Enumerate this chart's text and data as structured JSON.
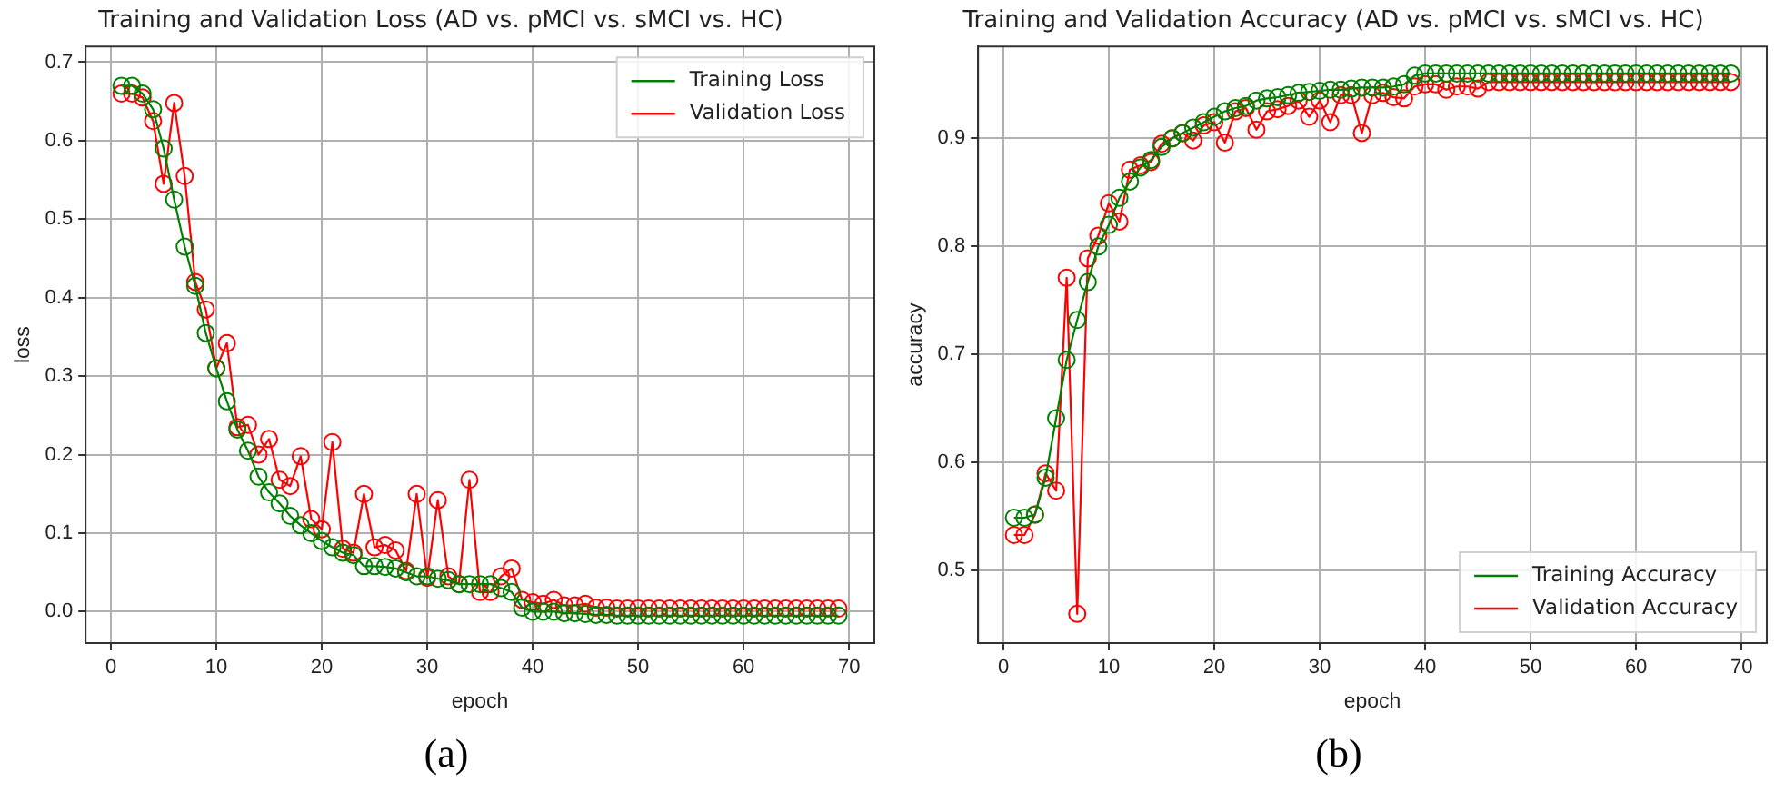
{
  "chart_data": [
    {
      "type": "line",
      "title": "Training and Validation Loss (AD vs. pMCI vs. sMCI vs. HC)",
      "xlabel": "epoch",
      "ylabel": "loss",
      "annotations": [
        "(a)"
      ],
      "x": [
        1,
        2,
        3,
        4,
        5,
        6,
        7,
        8,
        9,
        10,
        11,
        12,
        13,
        14,
        15,
        16,
        17,
        18,
        19,
        20,
        21,
        22,
        23,
        24,
        25,
        26,
        27,
        28,
        29,
        30,
        31,
        32,
        33,
        34,
        35,
        36,
        37,
        38,
        39,
        40,
        41,
        42,
        43,
        44,
        45,
        46,
        47,
        48,
        49,
        50,
        51,
        52,
        53,
        54,
        55,
        56,
        57,
        58,
        59,
        60,
        61,
        62,
        63,
        64,
        65,
        66,
        67,
        68,
        69
      ],
      "series": [
        {
          "name": "Training Loss",
          "color": "#008000",
          "values": [
            0.67,
            0.67,
            0.66,
            0.64,
            0.59,
            0.525,
            0.465,
            0.415,
            0.355,
            0.31,
            0.268,
            0.232,
            0.205,
            0.172,
            0.152,
            0.138,
            0.122,
            0.11,
            0.1,
            0.09,
            0.082,
            0.075,
            0.072,
            0.058,
            0.058,
            0.057,
            0.055,
            0.05,
            0.045,
            0.045,
            0.042,
            0.04,
            0.035,
            0.035,
            0.035,
            0.035,
            0.03,
            0.025,
            0.005,
            0.0,
            0.0,
            0.0,
            -0.002,
            -0.002,
            -0.003,
            -0.004,
            -0.004,
            -0.005,
            -0.005,
            -0.005,
            -0.005,
            -0.005,
            -0.005,
            -0.005,
            -0.005,
            -0.005,
            -0.005,
            -0.005,
            -0.005,
            -0.005,
            -0.005,
            -0.005,
            -0.005,
            -0.005,
            -0.005,
            -0.005,
            -0.005,
            -0.005,
            -0.005
          ]
        },
        {
          "name": "Validation Loss",
          "color": "#ff0000",
          "values": [
            0.66,
            0.66,
            0.655,
            0.625,
            0.545,
            0.648,
            0.555,
            0.42,
            0.385,
            0.31,
            0.342,
            0.235,
            0.238,
            0.2,
            0.22,
            0.168,
            0.16,
            0.198,
            0.118,
            0.105,
            0.216,
            0.08,
            0.075,
            0.15,
            0.082,
            0.085,
            0.078,
            0.052,
            0.15,
            0.043,
            0.142,
            0.045,
            0.035,
            0.168,
            0.025,
            0.025,
            0.045,
            0.055,
            0.015,
            0.012,
            0.01,
            0.015,
            0.008,
            0.008,
            0.01,
            0.005,
            0.005,
            0.004,
            0.004,
            0.004,
            0.004,
            0.004,
            0.004,
            0.004,
            0.004,
            0.004,
            0.004,
            0.004,
            0.004,
            0.004,
            0.004,
            0.004,
            0.004,
            0.004,
            0.004,
            0.004,
            0.004,
            0.004,
            0.004
          ]
        }
      ],
      "xlim": [
        -2.4,
        72.4
      ],
      "xticks": [
        0,
        10,
        20,
        30,
        40,
        50,
        60,
        70
      ],
      "ylim": [
        -0.04,
        0.72
      ],
      "yticks": [
        {
          "value": 0,
          "label": "0.0"
        },
        0.1,
        0.2,
        0.3,
        0.4,
        0.5,
        0.6,
        0.7
      ],
      "grid": true,
      "legend": "top right",
      "marker": "circle",
      "line_style": "solid"
    },
    {
      "type": "line",
      "title": "Training and Validation Accuracy (AD vs. pMCI vs. sMCI vs. HC)",
      "xlabel": "epoch",
      "ylabel": "accuracy",
      "annotations": [
        "(b)"
      ],
      "x": [
        1,
        2,
        3,
        4,
        5,
        6,
        7,
        8,
        9,
        10,
        11,
        12,
        13,
        14,
        15,
        16,
        17,
        18,
        19,
        20,
        21,
        22,
        23,
        24,
        25,
        26,
        27,
        28,
        29,
        30,
        31,
        32,
        33,
        34,
        35,
        36,
        37,
        38,
        39,
        40,
        41,
        42,
        43,
        44,
        45,
        46,
        47,
        48,
        49,
        50,
        51,
        52,
        53,
        54,
        55,
        56,
        57,
        58,
        59,
        60,
        61,
        62,
        63,
        64,
        65,
        66,
        67,
        68,
        69
      ],
      "series": [
        {
          "name": "Training Accuracy",
          "color": "#008000",
          "values": [
            0.549,
            0.549,
            0.552,
            0.586,
            0.641,
            0.695,
            0.732,
            0.767,
            0.8,
            0.82,
            0.845,
            0.86,
            0.873,
            0.88,
            0.892,
            0.9,
            0.905,
            0.91,
            0.915,
            0.92,
            0.925,
            0.928,
            0.93,
            0.935,
            0.937,
            0.938,
            0.94,
            0.942,
            0.943,
            0.944,
            0.945,
            0.945,
            0.946,
            0.947,
            0.947,
            0.947,
            0.948,
            0.95,
            0.958,
            0.96,
            0.96,
            0.96,
            0.96,
            0.96,
            0.96,
            0.96,
            0.96,
            0.96,
            0.96,
            0.96,
            0.96,
            0.96,
            0.96,
            0.96,
            0.96,
            0.96,
            0.96,
            0.96,
            0.96,
            0.96,
            0.96,
            0.96,
            0.96,
            0.96,
            0.96,
            0.96,
            0.96,
            0.96,
            0.96
          ]
        },
        {
          "name": "Validation Accuracy",
          "color": "#ff0000",
          "values": [
            0.533,
            0.533,
            0.552,
            0.59,
            0.574,
            0.771,
            0.46,
            0.789,
            0.81,
            0.84,
            0.823,
            0.871,
            0.875,
            0.878,
            0.895,
            0.9,
            0.905,
            0.898,
            0.912,
            0.915,
            0.896,
            0.925,
            0.928,
            0.908,
            0.925,
            0.927,
            0.93,
            0.935,
            0.92,
            0.935,
            0.915,
            0.94,
            0.94,
            0.905,
            0.94,
            0.942,
            0.938,
            0.937,
            0.948,
            0.95,
            0.95,
            0.945,
            0.948,
            0.948,
            0.946,
            0.952,
            0.952,
            0.952,
            0.952,
            0.952,
            0.952,
            0.952,
            0.952,
            0.952,
            0.952,
            0.952,
            0.952,
            0.952,
            0.952,
            0.952,
            0.952,
            0.952,
            0.952,
            0.952,
            0.952,
            0.952,
            0.952,
            0.952,
            0.952
          ]
        }
      ],
      "xlim": [
        -2.4,
        72.4
      ],
      "xticks": [
        0,
        10,
        20,
        30,
        40,
        50,
        60,
        70
      ],
      "ylim": [
        0.433,
        0.985
      ],
      "yticks": [
        0.5,
        0.6,
        0.7,
        0.8,
        0.9
      ],
      "grid": true,
      "legend": "bottom right",
      "marker": "circle",
      "line_style": "solid"
    }
  ]
}
